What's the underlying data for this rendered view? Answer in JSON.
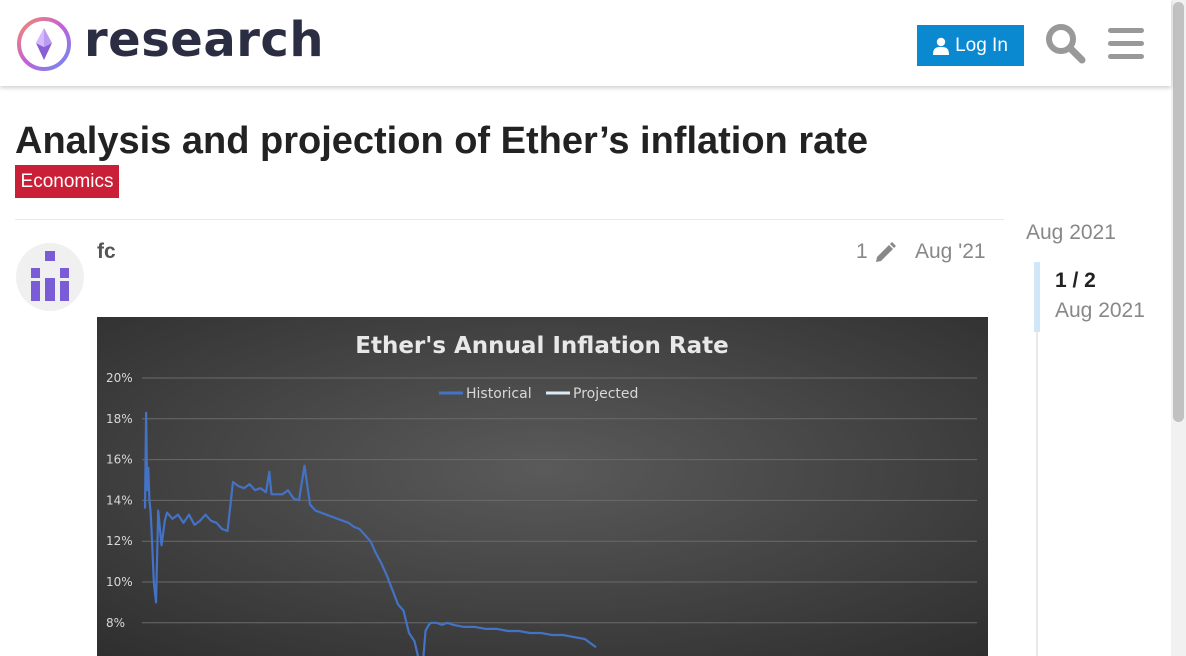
{
  "header": {
    "logo_text": "research",
    "login_label": "Log In"
  },
  "topic": {
    "title": "Analysis and projection of Ether’s inflation rate",
    "category": "Economics"
  },
  "post": {
    "author": "fc",
    "edit_count": "1",
    "date": "Aug '21"
  },
  "timeline": {
    "start": "Aug 2021",
    "position": "1 / 2",
    "current_date": "Aug 2021"
  },
  "colors": {
    "accent": "#0a88d0",
    "category": "#c91f37",
    "historical": "#4472c4",
    "projected": "#9dc3e6"
  },
  "chart_data": {
    "type": "line",
    "title": "Ether's Annual Inflation Rate",
    "legend_placement": "top-center",
    "grid": true,
    "yticks": [
      "20%",
      "18%",
      "16%",
      "14%",
      "12%",
      "10%",
      "8%"
    ],
    "ylim": [
      0,
      20
    ],
    "series": [
      {
        "name": "Historical",
        "x": [
          0,
          1,
          2,
          3,
          4,
          5,
          6,
          8,
          10,
          12,
          15,
          18,
          20,
          25,
          30,
          35,
          40,
          45,
          50,
          55,
          60,
          65,
          70,
          75,
          80,
          85,
          90,
          95,
          100,
          105,
          110,
          113,
          115,
          120,
          125,
          130,
          135,
          140,
          145,
          150,
          155,
          160,
          165,
          170,
          175,
          180,
          185,
          190,
          195,
          200,
          205,
          210,
          215,
          220,
          225,
          230,
          235,
          240,
          245,
          248,
          250,
          252,
          255,
          258,
          260,
          265,
          270,
          275,
          280,
          290,
          300,
          310,
          320,
          330,
          340,
          350,
          360,
          370,
          380,
          390,
          400,
          405,
          410
        ],
        "values": [
          13.6,
          18.3,
          14.5,
          15.6,
          14.0,
          13.5,
          12.5,
          10.0,
          9.0,
          13.5,
          11.8,
          13.0,
          13.4,
          13.1,
          13.3,
          12.9,
          13.3,
          12.8,
          13.0,
          13.3,
          13.0,
          12.9,
          12.6,
          12.5,
          14.9,
          14.7,
          14.6,
          14.8,
          14.5,
          14.6,
          14.4,
          15.4,
          14.3,
          14.3,
          14.3,
          14.5,
          14.1,
          14.0,
          15.7,
          13.8,
          13.5,
          13.4,
          13.3,
          13.2,
          13.1,
          13.0,
          12.9,
          12.7,
          12.6,
          12.3,
          12.0,
          11.4,
          10.9,
          10.3,
          9.6,
          8.9,
          8.6,
          7.5,
          7.1,
          6.4,
          5.0,
          5.6,
          7.6,
          7.9,
          8.0,
          8.0,
          7.9,
          8.0,
          7.9,
          7.8,
          7.8,
          7.7,
          7.7,
          7.6,
          7.6,
          7.5,
          7.5,
          7.4,
          7.4,
          7.3,
          7.2,
          7.0,
          6.8
        ]
      },
      {
        "name": "Projected",
        "x": [],
        "values": []
      }
    ]
  }
}
